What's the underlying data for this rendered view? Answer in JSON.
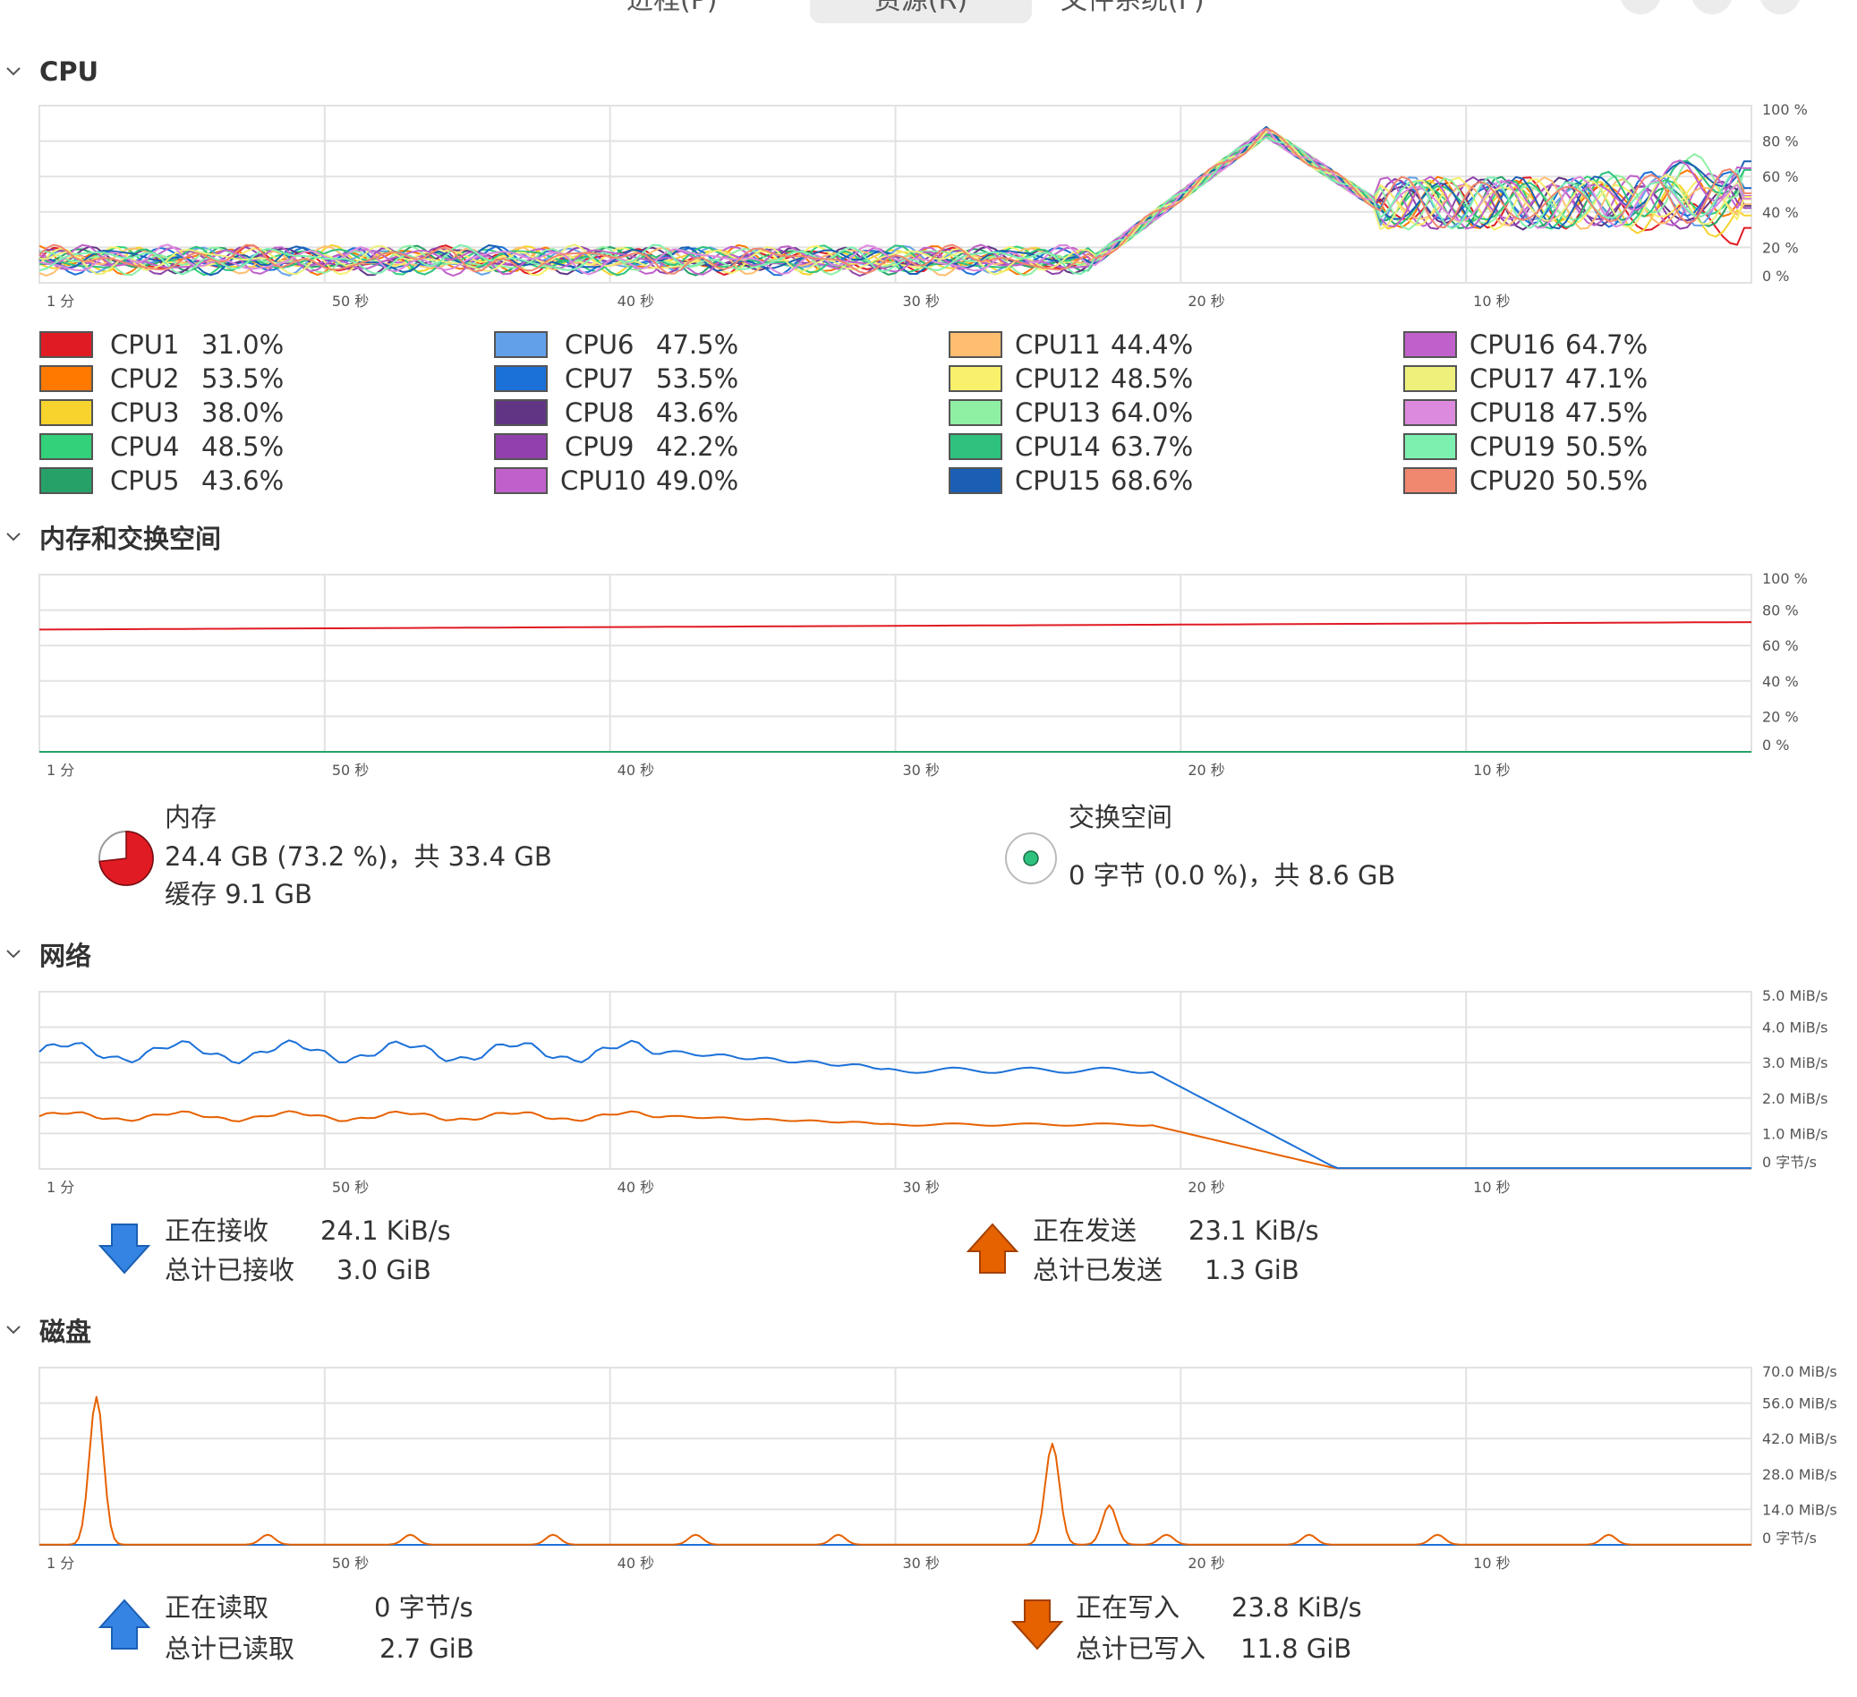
{
  "header": {
    "tabs": [
      {
        "label": "进程(P)",
        "active": false
      },
      {
        "label": "资源(R)",
        "active": true
      },
      {
        "label": "文件系统(F)",
        "active": false
      }
    ]
  },
  "colors": {
    "grid": "#e2e2e2",
    "axis_text": "#555555",
    "memory_line": "#e01b24",
    "swap_line": "#26a269",
    "receive_line": "#1c71d8",
    "send_line": "#e66100",
    "read_line": "#1c71d8",
    "write_line": "#e66100",
    "receive_icon": "#3584e4",
    "send_icon": "#f66151"
  },
  "time_axis": {
    "labels": [
      "1 分",
      "50 秒",
      "40 秒",
      "30 秒",
      "20 秒",
      "10 秒"
    ],
    "seconds": [
      60,
      50,
      40,
      30,
      20,
      10
    ]
  },
  "cpu": {
    "title": "CPU",
    "y_axis_labels": [
      "100 %",
      "80 %",
      "60 %",
      "40 %",
      "20 %",
      "0 %"
    ],
    "items": [
      {
        "name": "CPU1",
        "value": "31.0%",
        "color": "#e01b24"
      },
      {
        "name": "CPU2",
        "value": "53.5%",
        "color": "#ff7800"
      },
      {
        "name": "CPU3",
        "value": "38.0%",
        "color": "#f6d32d"
      },
      {
        "name": "CPU4",
        "value": "48.5%",
        "color": "#33d17a"
      },
      {
        "name": "CPU5",
        "value": "43.6%",
        "color": "#26a269"
      },
      {
        "name": "CPU6",
        "value": "47.5%",
        "color": "#62a0ea"
      },
      {
        "name": "CPU7",
        "value": "53.5%",
        "color": "#1c71d8"
      },
      {
        "name": "CPU8",
        "value": "43.6%",
        "color": "#613583"
      },
      {
        "name": "CPU9",
        "value": "42.2%",
        "color": "#9141ac"
      },
      {
        "name": "CPU10",
        "value": "49.0%",
        "color": "#c061cb"
      },
      {
        "name": "CPU11",
        "value": "44.4%",
        "color": "#ffbe6f"
      },
      {
        "name": "CPU12",
        "value": "48.5%",
        "color": "#f9f06b"
      },
      {
        "name": "CPU13",
        "value": "64.0%",
        "color": "#8ff0a4"
      },
      {
        "name": "CPU14",
        "value": "63.7%",
        "color": "#2ec27e"
      },
      {
        "name": "CPU15",
        "value": "68.6%",
        "color": "#1a5fb4"
      },
      {
        "name": "CPU16",
        "value": "64.7%",
        "color": "#c061cb"
      },
      {
        "name": "CPU17",
        "value": "47.1%",
        "color": "#eef07b"
      },
      {
        "name": "CPU18",
        "value": "47.5%",
        "color": "#dc8add"
      },
      {
        "name": "CPU19",
        "value": "50.5%",
        "color": "#7df0b0"
      },
      {
        "name": "CPU20",
        "value": "50.5%",
        "color": "#f0876f"
      }
    ]
  },
  "memory": {
    "title": "内存和交换空间",
    "y_axis_labels": [
      "100 %",
      "80 %",
      "60 %",
      "40 %",
      "20 %",
      "0 %"
    ],
    "memory_percent": 73.2,
    "swap_percent": 0.0,
    "memory_label": "内存",
    "memory_usage": "24.4 GB (73.2 %)，共 33.4 GB",
    "memory_cache": "缓存 9.1 GB",
    "swap_label": "交换空间",
    "swap_usage": "0 字节 (0.0 %)，共 8.6 GB"
  },
  "network": {
    "title": "网络",
    "y_axis_labels": [
      "5.0 MiB/s",
      "4.0 MiB/s",
      "3.0 MiB/s",
      "2.0 MiB/s",
      "1.0 MiB/s",
      "0 字节/s"
    ],
    "receiving_label": "正在接收",
    "receiving_value": "24.1 KiB/s",
    "total_received_label": "总计已接收",
    "total_received_value": "3.0 GiB",
    "sending_label": "正在发送",
    "sending_value": "23.1 KiB/s",
    "total_sent_label": "总计已发送",
    "total_sent_value": "1.3 GiB"
  },
  "disk": {
    "title": "磁盘",
    "y_axis_labels": [
      "70.0 MiB/s",
      "56.0 MiB/s",
      "42.0 MiB/s",
      "28.0 MiB/s",
      "14.0 MiB/s",
      "0 字节/s"
    ],
    "reading_label": "正在读取",
    "reading_value": "0 字节/s",
    "total_read_label": "总计已读取",
    "total_read_value": "2.7 GiB",
    "writing_label": "正在写入",
    "writing_value": "23.8 KiB/s",
    "total_written_label": "总计已写入",
    "total_written_value": "11.8 GiB"
  }
}
